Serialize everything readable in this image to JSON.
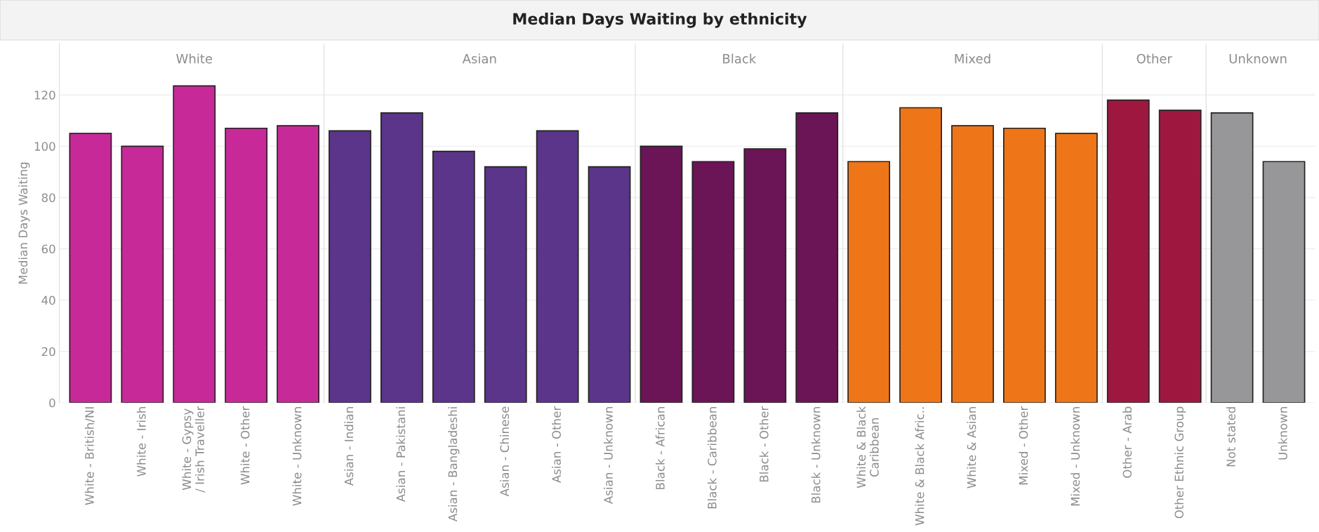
{
  "chart_data": {
    "type": "bar",
    "title": "Median Days Waiting by ethnicity",
    "ylabel": "Median Days Waiting",
    "categories": [
      "White - British/NI",
      "White - Irish",
      "White - Gypsy / Irish Traveller",
      "White - Other",
      "White - Unknown",
      "Asian - Indian",
      "Asian - Pakistani",
      "Asian - Bangladeshi",
      "Asian - Chinese",
      "Asian - Other",
      "Asian - Unknown",
      "Black - African",
      "Black - Caribbean",
      "Black - Other",
      "Black - Unknown",
      "White & Black Caribbean",
      "White & Black Afric..",
      "White & Asian",
      "Mixed - Other",
      "Mixed - Unknown",
      "Other - Arab",
      "Other Ethnic Group",
      "Not stated",
      "Unknown"
    ],
    "values": [
      105,
      100,
      123.5,
      107,
      108,
      106,
      113,
      98,
      92,
      106,
      92,
      100,
      94,
      99,
      113,
      94,
      115,
      108,
      107,
      105,
      118,
      114,
      113,
      94
    ],
    "colors": [
      "#c72a98",
      "#c72a98",
      "#c72a98",
      "#c72a98",
      "#c72a98",
      "#5a358a",
      "#5a358a",
      "#5a358a",
      "#5a358a",
      "#5a358a",
      "#5a358a",
      "#6b1456",
      "#6b1456",
      "#6b1456",
      "#6b1456",
      "#ee7518",
      "#ee7518",
      "#ee7518",
      "#ee7518",
      "#ee7518",
      "#9e173f",
      "#9e173f",
      "#97979a",
      "#97979a"
    ],
    "annotations": [
      "White",
      "Asian",
      "Black",
      "Mixed",
      "Other",
      "Unknown"
    ],
    "ylim": [
      0,
      140
    ],
    "yticks": [
      0,
      20,
      40,
      60,
      80,
      100,
      120
    ],
    "grid": "y"
  }
}
